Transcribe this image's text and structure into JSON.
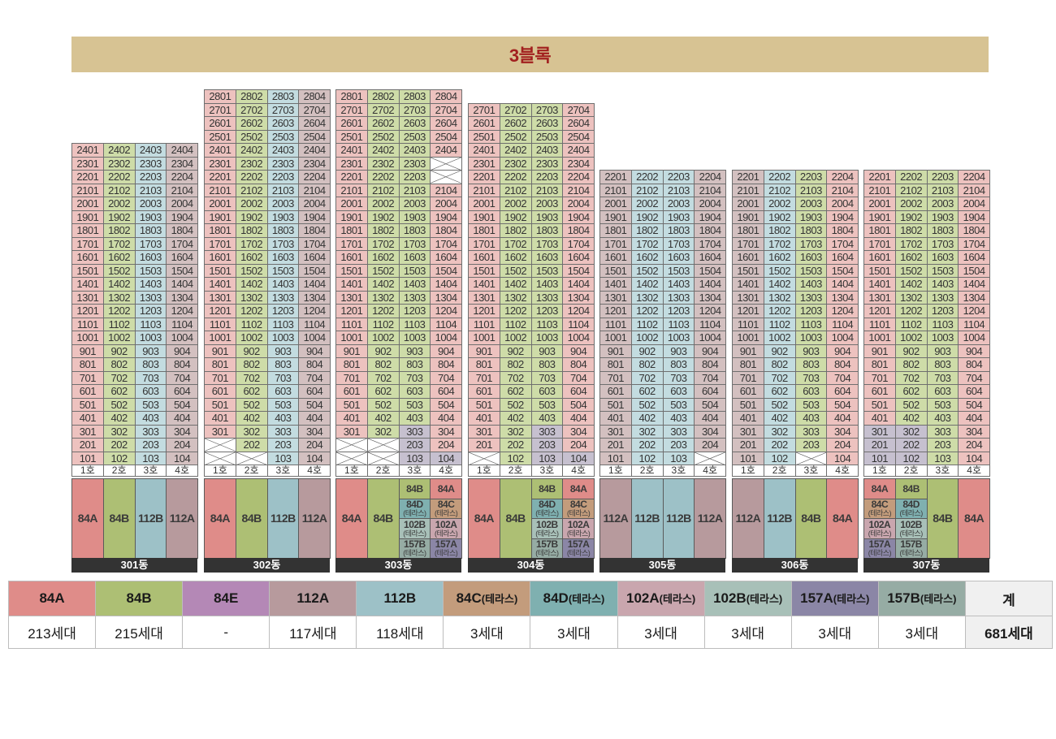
{
  "title": "3블록",
  "colors": {
    "84A": "#df8c89",
    "84B": "#adbf74",
    "84E": "#b488b6",
    "112A": "#b79a9d",
    "112B": "#9dc1c7",
    "84C_terrace": "#c39c7c",
    "84D_terrace": "#7fb0b0",
    "102A_terrace": "#c9a6ae",
    "102B_terrace": "#a8c0b8",
    "157A_terrace": "#8b86a6",
    "157B_terrace": "#96aca4",
    "total": "#f0f0f0",
    "floor_84A": "#edc2bf",
    "floor_84B": "#cedca8",
    "floor_112A": "#d3c0c0",
    "floor_112B": "#c3dce0",
    "floor_special": "#c6c0cf"
  },
  "building_names": [
    "301동",
    "302동",
    "303동",
    "304동",
    "305동",
    "306동",
    "307동"
  ],
  "line_labels": [
    "1호",
    "2호",
    "3호",
    "4호"
  ],
  "type_labels": {
    "84A": "84A",
    "84B": "84B",
    "112A": "112A",
    "112B": "112B",
    "84C": "84C",
    "84D": "84D",
    "102A": "102A",
    "102B": "102B",
    "157A": "157A",
    "157B": "157B",
    "terrace_sub": "(테라스)"
  },
  "buildings": [
    {
      "name": "301동",
      "top_floor": 24,
      "line_types": [
        "84A",
        "84B",
        "112B",
        "112A"
      ],
      "empty": [],
      "special": {},
      "bottom": [
        {
          "stack": [
            {
              "type": "84A"
            }
          ]
        },
        {
          "stack": [
            {
              "type": "84B"
            }
          ]
        },
        {
          "stack": [
            {
              "type": "112B"
            }
          ]
        },
        {
          "stack": [
            {
              "type": "112A"
            }
          ]
        }
      ]
    },
    {
      "name": "302동",
      "top_floor": 28,
      "line_types": [
        "84A",
        "84B",
        "112B",
        "112A"
      ],
      "empty": [
        "1-1",
        "1-2",
        "2-1"
      ],
      "special": {},
      "bottom": [
        {
          "stack": [
            {
              "type": "84A"
            }
          ]
        },
        {
          "stack": [
            {
              "type": "84B"
            }
          ]
        },
        {
          "stack": [
            {
              "type": "112B"
            }
          ]
        },
        {
          "stack": [
            {
              "type": "112A"
            }
          ]
        }
      ]
    },
    {
      "name": "303동",
      "top_floor": 28,
      "line_types": [
        "84A",
        "84B",
        "84B",
        "84A"
      ],
      "empty": [
        "22-4",
        "23-4",
        "1-1",
        "1-2",
        "2-1",
        "2-2"
      ],
      "special": {
        "3-3": "special",
        "1-3": "special",
        "1-4": "special",
        "2-3": "special"
      },
      "bottom": [
        {
          "stack": [
            {
              "type": "84A"
            }
          ]
        },
        {
          "stack": [
            {
              "type": "84B"
            }
          ]
        },
        {
          "stack": [
            {
              "type": "84B"
            },
            {
              "type": "84D",
              "terrace": true
            },
            {
              "type": "102B",
              "terrace": true
            },
            {
              "type": "157B",
              "terrace": true
            }
          ]
        },
        {
          "stack": [
            {
              "type": "84A"
            },
            {
              "type": "84C",
              "terrace": true
            },
            {
              "type": "102A",
              "terrace": true
            },
            {
              "type": "157A",
              "terrace": true
            }
          ]
        }
      ]
    },
    {
      "name": "304동",
      "top_floor": 27,
      "line_types": [
        "84A",
        "84B",
        "84B",
        "84A"
      ],
      "empty": [
        "1-1"
      ],
      "special": {
        "3-3": "special",
        "1-3": "special",
        "1-4": "special",
        "2-3": "special"
      },
      "bottom": [
        {
          "stack": [
            {
              "type": "84A"
            }
          ]
        },
        {
          "stack": [
            {
              "type": "84B"
            }
          ]
        },
        {
          "stack": [
            {
              "type": "84B"
            },
            {
              "type": "84D",
              "terrace": true
            },
            {
              "type": "102B",
              "terrace": true
            },
            {
              "type": "157B",
              "terrace": true
            }
          ]
        },
        {
          "stack": [
            {
              "type": "84A"
            },
            {
              "type": "84C",
              "terrace": true
            },
            {
              "type": "102A",
              "terrace": true
            },
            {
              "type": "157A",
              "terrace": true
            }
          ]
        }
      ]
    },
    {
      "name": "305동",
      "top_floor": 22,
      "line_types": [
        "112A",
        "112B",
        "112B",
        "112A"
      ],
      "empty": [
        "1-4"
      ],
      "special": {},
      "bottom": [
        {
          "stack": [
            {
              "type": "112A"
            }
          ]
        },
        {
          "stack": [
            {
              "type": "112B"
            }
          ]
        },
        {
          "stack": [
            {
              "type": "112B"
            }
          ]
        },
        {
          "stack": [
            {
              "type": "112A"
            }
          ]
        }
      ]
    },
    {
      "name": "306동",
      "top_floor": 22,
      "line_types": [
        "112A",
        "112B",
        "84B",
        "84A"
      ],
      "empty": [
        "1-3"
      ],
      "special": {},
      "bottom": [
        {
          "stack": [
            {
              "type": "112A"
            }
          ]
        },
        {
          "stack": [
            {
              "type": "112B"
            }
          ]
        },
        {
          "stack": [
            {
              "type": "84B"
            }
          ]
        },
        {
          "stack": [
            {
              "type": "84A"
            }
          ]
        }
      ]
    },
    {
      "name": "307동",
      "top_floor": 22,
      "line_types": [
        "84A",
        "84B",
        "84B",
        "84A"
      ],
      "empty": [],
      "special": {
        "3-1": "special",
        "3-2": "special",
        "1-1": "special",
        "1-2": "special",
        "2-1": "special",
        "2-2": "special"
      },
      "bottom": [
        {
          "stack": [
            {
              "type": "84A"
            },
            {
              "type": "84C",
              "terrace": true
            },
            {
              "type": "102A",
              "terrace": true
            },
            {
              "type": "157A",
              "terrace": true
            }
          ]
        },
        {
          "stack": [
            {
              "type": "84B"
            },
            {
              "type": "84D",
              "terrace": true
            },
            {
              "type": "102B",
              "terrace": true
            },
            {
              "type": "157B",
              "terrace": true
            }
          ]
        },
        {
          "stack": [
            {
              "type": "84B"
            }
          ]
        },
        {
          "stack": [
            {
              "type": "84A"
            }
          ]
        }
      ]
    }
  ],
  "legend": {
    "types": [
      {
        "main": "84A",
        "paren": "",
        "count": "213세대",
        "color": "#df8c89"
      },
      {
        "main": "84B",
        "paren": "",
        "count": "215세대",
        "color": "#adbf74"
      },
      {
        "main": "84E",
        "paren": "",
        "count": "-",
        "color": "#b488b6"
      },
      {
        "main": "112A",
        "paren": "",
        "count": "117세대",
        "color": "#b79a9d"
      },
      {
        "main": "112B",
        "paren": "",
        "count": "118세대",
        "color": "#9dc1c7"
      },
      {
        "main": "84C",
        "paren": "(테라스)",
        "count": "3세대",
        "color": "#c39c7c"
      },
      {
        "main": "84D",
        "paren": "(테라스)",
        "count": "3세대",
        "color": "#7fb0b0"
      },
      {
        "main": "102A",
        "paren": "(테라스)",
        "count": "3세대",
        "color": "#c9a6ae"
      },
      {
        "main": "102B",
        "paren": "(테라스)",
        "count": "3세대",
        "color": "#a8c0b8"
      },
      {
        "main": "157A",
        "paren": "(테라스)",
        "count": "3세대",
        "color": "#8b86a6"
      },
      {
        "main": "157B",
        "paren": "(테라스)",
        "count": "3세대",
        "color": "#96aca4"
      },
      {
        "main": "계",
        "paren": "",
        "count": "681세대",
        "color": "#f0f0f0"
      }
    ]
  }
}
